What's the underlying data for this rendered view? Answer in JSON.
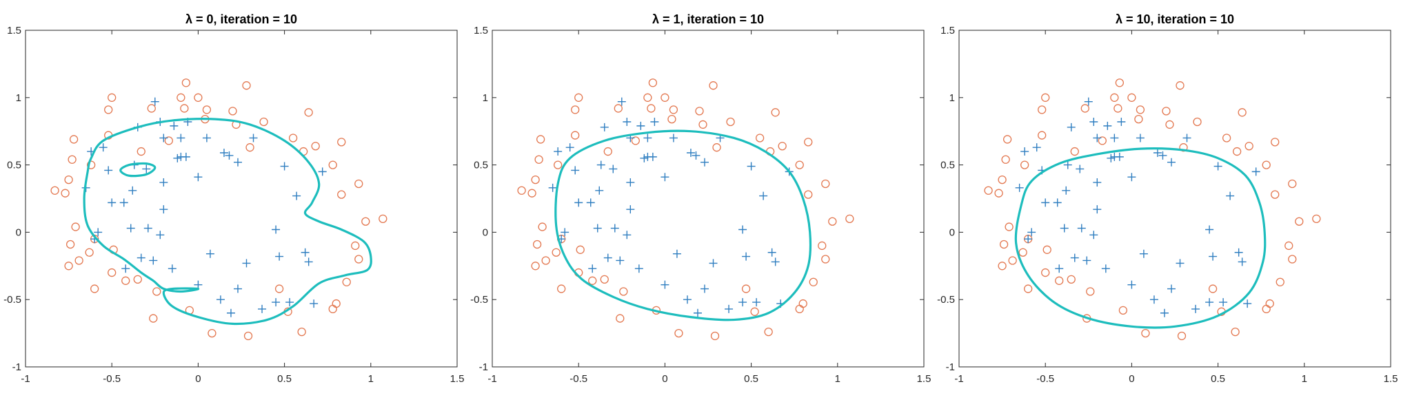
{
  "chart_data": [
    {
      "type": "scatter",
      "title": "λ = 0, iteration = 10",
      "xlim": [
        -1,
        1.5
      ],
      "ylim": [
        -1,
        1.5
      ],
      "xticks": [
        "-1",
        "-0.5",
        "0",
        "0.5",
        "1",
        "1.5"
      ],
      "yticks": [
        "-1",
        "-0.5",
        "0",
        "0.5",
        "1",
        "1.5"
      ],
      "grid": false,
      "boundary": [
        [
          -0.62,
          0.55
        ],
        [
          -0.55,
          0.68
        ],
        [
          -0.35,
          0.78
        ],
        [
          -0.15,
          0.83
        ],
        [
          0.1,
          0.84
        ],
        [
          0.3,
          0.8
        ],
        [
          0.5,
          0.68
        ],
        [
          0.64,
          0.52
        ],
        [
          0.7,
          0.36
        ],
        [
          0.66,
          0.22
        ],
        [
          0.62,
          0.14
        ],
        [
          0.7,
          0.08
        ],
        [
          0.83,
          0.02
        ],
        [
          0.96,
          -0.07
        ],
        [
          1.0,
          -0.18
        ],
        [
          0.98,
          -0.28
        ],
        [
          0.85,
          -0.32
        ],
        [
          0.7,
          -0.38
        ],
        [
          0.55,
          -0.55
        ],
        [
          0.4,
          -0.65
        ],
        [
          0.2,
          -0.68
        ],
        [
          0.0,
          -0.63
        ],
        [
          -0.15,
          -0.55
        ],
        [
          -0.2,
          -0.45
        ],
        [
          -0.15,
          -0.42
        ],
        [
          0.0,
          -0.42
        ],
        [
          -0.1,
          -0.44
        ],
        [
          -0.2,
          -0.42
        ],
        [
          -0.26,
          -0.36
        ],
        [
          -0.33,
          -0.3
        ],
        [
          -0.43,
          -0.2
        ],
        [
          -0.55,
          -0.1
        ],
        [
          -0.64,
          0.05
        ],
        [
          -0.66,
          0.25
        ],
        [
          -0.64,
          0.45
        ],
        [
          -0.62,
          0.55
        ]
      ],
      "boundary_island": [
        [
          -0.4,
          0.5
        ],
        [
          -0.3,
          0.51
        ],
        [
          -0.25,
          0.48
        ],
        [
          -0.3,
          0.43
        ],
        [
          -0.4,
          0.42
        ],
        [
          -0.45,
          0.46
        ],
        [
          -0.4,
          0.5
        ]
      ]
    },
    {
      "type": "scatter",
      "title": "λ = 1, iteration = 10",
      "xlim": [
        -1,
        1.5
      ],
      "ylim": [
        -1,
        1.5
      ],
      "xticks": [
        "-1",
        "-0.5",
        "0",
        "0.5",
        "1",
        "1.5"
      ],
      "yticks": [
        "-1",
        "-0.5",
        "0",
        "0.5",
        "1",
        "1.5"
      ],
      "grid": false,
      "boundary": [
        [
          -0.62,
          0.36
        ],
        [
          -0.55,
          0.55
        ],
        [
          -0.35,
          0.68
        ],
        [
          -0.1,
          0.74
        ],
        [
          0.15,
          0.75
        ],
        [
          0.4,
          0.7
        ],
        [
          0.58,
          0.6
        ],
        [
          0.72,
          0.45
        ],
        [
          0.8,
          0.25
        ],
        [
          0.84,
          0.0
        ],
        [
          0.83,
          -0.25
        ],
        [
          0.75,
          -0.45
        ],
        [
          0.6,
          -0.6
        ],
        [
          0.4,
          -0.65
        ],
        [
          0.15,
          -0.63
        ],
        [
          -0.1,
          -0.57
        ],
        [
          -0.3,
          -0.48
        ],
        [
          -0.48,
          -0.35
        ],
        [
          -0.58,
          -0.18
        ],
        [
          -0.63,
          0.05
        ],
        [
          -0.62,
          0.36
        ]
      ]
    },
    {
      "type": "scatter",
      "title": "λ = 10, iteration = 10",
      "xlim": [
        -1,
        1.5
      ],
      "ylim": [
        -1,
        1.5
      ],
      "xticks": [
        "-1",
        "-0.5",
        "0",
        "0.5",
        "1",
        "1.5"
      ],
      "yticks": [
        "-1",
        "-0.5",
        "0",
        "0.5",
        "1",
        "1.5"
      ],
      "grid": false,
      "boundary": [
        [
          -0.64,
          0.2
        ],
        [
          -0.58,
          0.38
        ],
        [
          -0.42,
          0.51
        ],
        [
          -0.2,
          0.58
        ],
        [
          0.05,
          0.62
        ],
        [
          0.3,
          0.61
        ],
        [
          0.5,
          0.55
        ],
        [
          0.66,
          0.42
        ],
        [
          0.74,
          0.22
        ],
        [
          0.77,
          0.0
        ],
        [
          0.76,
          -0.22
        ],
        [
          0.68,
          -0.45
        ],
        [
          0.5,
          -0.62
        ],
        [
          0.25,
          -0.7
        ],
        [
          0.0,
          -0.7
        ],
        [
          -0.25,
          -0.64
        ],
        [
          -0.45,
          -0.52
        ],
        [
          -0.6,
          -0.32
        ],
        [
          -0.67,
          -0.08
        ],
        [
          -0.64,
          0.2
        ]
      ]
    }
  ],
  "samples": {
    "positive": [
      [
        -0.25,
        0.97
      ],
      [
        -0.35,
        0.78
      ],
      [
        -0.55,
        0.63
      ],
      [
        -0.62,
        0.6
      ],
      [
        -0.65,
        0.33
      ],
      [
        -0.52,
        0.46
      ],
      [
        -0.37,
        0.5
      ],
      [
        -0.3,
        0.47
      ],
      [
        -0.38,
        0.31
      ],
      [
        -0.5,
        0.22
      ],
      [
        -0.43,
        0.22
      ],
      [
        -0.2,
        0.7
      ],
      [
        -0.14,
        0.79
      ],
      [
        -0.1,
        0.7
      ],
      [
        -0.06,
        0.82
      ],
      [
        0.05,
        0.7
      ],
      [
        0.18,
        0.57
      ],
      [
        0.23,
        0.52
      ],
      [
        0.32,
        0.7
      ],
      [
        0.5,
        0.49
      ],
      [
        0.57,
        0.27
      ],
      [
        0.72,
        0.45
      ],
      [
        -0.07,
        0.56
      ],
      [
        -0.12,
        0.55
      ],
      [
        -0.2,
        0.37
      ],
      [
        -0.2,
        0.17
      ],
      [
        -0.39,
        0.03
      ],
      [
        -0.29,
        0.03
      ],
      [
        -0.22,
        -0.02
      ],
      [
        -0.6,
        -0.05
      ],
      [
        -0.58,
        0.0
      ],
      [
        -0.42,
        -0.27
      ],
      [
        -0.33,
        -0.19
      ],
      [
        -0.26,
        -0.21
      ],
      [
        -0.15,
        -0.27
      ],
      [
        0.07,
        -0.16
      ],
      [
        0.28,
        -0.23
      ],
      [
        0.47,
        -0.18
      ],
      [
        0.62,
        -0.15
      ],
      [
        0.64,
        -0.22
      ],
      [
        0.45,
        0.02
      ],
      [
        0.0,
        -0.39
      ],
      [
        0.13,
        -0.5
      ],
      [
        0.23,
        -0.42
      ],
      [
        0.37,
        -0.57
      ],
      [
        0.45,
        -0.52
      ],
      [
        0.53,
        -0.52
      ],
      [
        0.67,
        -0.53
      ],
      [
        0.19,
        -0.6
      ],
      [
        -0.1,
        0.56
      ],
      [
        0.0,
        0.41
      ],
      [
        0.15,
        0.59
      ],
      [
        -0.22,
        0.82
      ]
    ],
    "negative": [
      [
        -0.07,
        1.11
      ],
      [
        -0.1,
        1.0
      ],
      [
        0.0,
        1.0
      ],
      [
        0.28,
        1.09
      ],
      [
        -0.5,
        1.0
      ],
      [
        -0.52,
        0.91
      ],
      [
        -0.27,
        0.92
      ],
      [
        -0.08,
        0.92
      ],
      [
        0.05,
        0.91
      ],
      [
        0.2,
        0.9
      ],
      [
        0.38,
        0.82
      ],
      [
        0.64,
        0.89
      ],
      [
        -0.72,
        0.69
      ],
      [
        -0.52,
        0.72
      ],
      [
        -0.33,
        0.6
      ],
      [
        -0.17,
        0.68
      ],
      [
        0.04,
        0.84
      ],
      [
        0.22,
        0.8
      ],
      [
        0.3,
        0.63
      ],
      [
        0.55,
        0.7
      ],
      [
        0.61,
        0.6
      ],
      [
        0.68,
        0.64
      ],
      [
        0.83,
        0.67
      ],
      [
        0.78,
        0.5
      ],
      [
        -0.73,
        0.54
      ],
      [
        -0.62,
        0.5
      ],
      [
        -0.75,
        0.39
      ],
      [
        -0.83,
        0.31
      ],
      [
        -0.77,
        0.29
      ],
      [
        -0.71,
        0.04
      ],
      [
        -0.6,
        -0.05
      ],
      [
        -0.74,
        -0.09
      ],
      [
        -0.63,
        -0.15
      ],
      [
        -0.69,
        -0.21
      ],
      [
        -0.75,
        -0.25
      ],
      [
        -0.49,
        -0.13
      ],
      [
        -0.5,
        -0.3
      ],
      [
        -0.35,
        -0.35
      ],
      [
        -0.42,
        -0.36
      ],
      [
        -0.6,
        -0.42
      ],
      [
        -0.24,
        -0.44
      ],
      [
        -0.26,
        -0.64
      ],
      [
        -0.05,
        -0.58
      ],
      [
        0.08,
        -0.75
      ],
      [
        0.29,
        -0.77
      ],
      [
        0.47,
        -0.42
      ],
      [
        0.52,
        -0.59
      ],
      [
        0.6,
        -0.74
      ],
      [
        0.78,
        -0.57
      ],
      [
        0.8,
        -0.53
      ],
      [
        0.86,
        -0.37
      ],
      [
        0.93,
        0.36
      ],
      [
        0.97,
        0.08
      ],
      [
        1.07,
        0.1
      ],
      [
        0.83,
        0.28
      ],
      [
        0.93,
        -0.2
      ],
      [
        0.91,
        -0.1
      ]
    ]
  },
  "colors": {
    "positive_marker": "#2f7ec0",
    "negative_marker": "#e3774f",
    "boundary": "#1dbdbd",
    "axis": "#262626"
  }
}
